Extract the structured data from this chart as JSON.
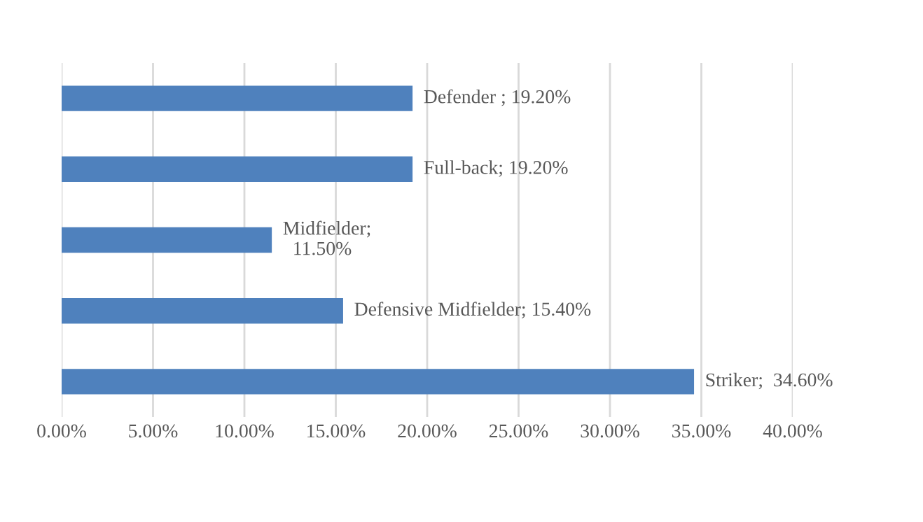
{
  "chart_data": {
    "type": "bar",
    "orientation": "horizontal",
    "categories": [
      null,
      null,
      null,
      null,
      null
    ],
    "values": [
      19.2,
      19.2,
      11.5,
      15.4,
      34.6
    ],
    "value_labels": [
      "Defender ; 19.20%",
      "Full-back; 19.20%",
      "Midfielder;\n  11.50%",
      "Defensive Midfielder; 15.40%",
      "Striker;  34.60%"
    ],
    "color": "#4f81bd",
    "xlim": [
      0,
      40
    ],
    "xticks": [
      {
        "value": 0,
        "label": "0.00%"
      },
      {
        "value": 5,
        "label": "5.00%"
      },
      {
        "value": 10,
        "label": "10.00%"
      },
      {
        "value": 15,
        "label": "15.00%"
      },
      {
        "value": 20,
        "label": "20.00%"
      },
      {
        "value": 25,
        "label": "25.00%"
      },
      {
        "value": 30,
        "label": "30.00%"
      },
      {
        "value": 35,
        "label": "35.00%"
      },
      {
        "value": 40,
        "label": "40.00%"
      }
    ],
    "grid": "x"
  }
}
